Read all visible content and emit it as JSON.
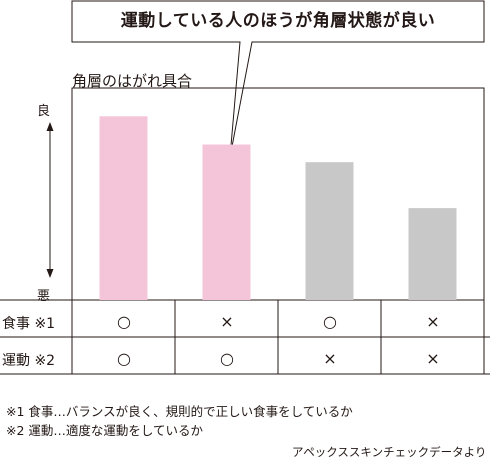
{
  "callout": "運動している人のほうが角層状態が良い",
  "chart_data": {
    "type": "bar",
    "title": "角層のはがれ具合",
    "ylabel_top": "良",
    "ylabel_bottom": "悪",
    "categories": [
      "食事○運動○",
      "食事×運動○",
      "食事○運動×",
      "食事×運動×"
    ],
    "values": [
      5.2,
      4.4,
      3.9,
      2.6
    ],
    "ylim": [
      0,
      6
    ],
    "bar_colors": [
      "#f4c4d8",
      "#f4c4d8",
      "#c8c8c8",
      "#c8c8c8"
    ],
    "grid": false
  },
  "table": {
    "rows": [
      {
        "label": "食事 ※1",
        "cells": [
          "○",
          "×",
          "○",
          "×"
        ]
      },
      {
        "label": "運動 ※2",
        "cells": [
          "○",
          "○",
          "×",
          "×"
        ]
      }
    ]
  },
  "notes": [
    "※1 食事…バランスが良く、規則的で正しい食事をしているか",
    "※2 運動…適度な運動をしているか"
  ],
  "source": "アペックススキンチェックデータより",
  "colors": {
    "line": "#231815",
    "pink": "#f4c4d8",
    "gray": "#c8c8c8"
  }
}
